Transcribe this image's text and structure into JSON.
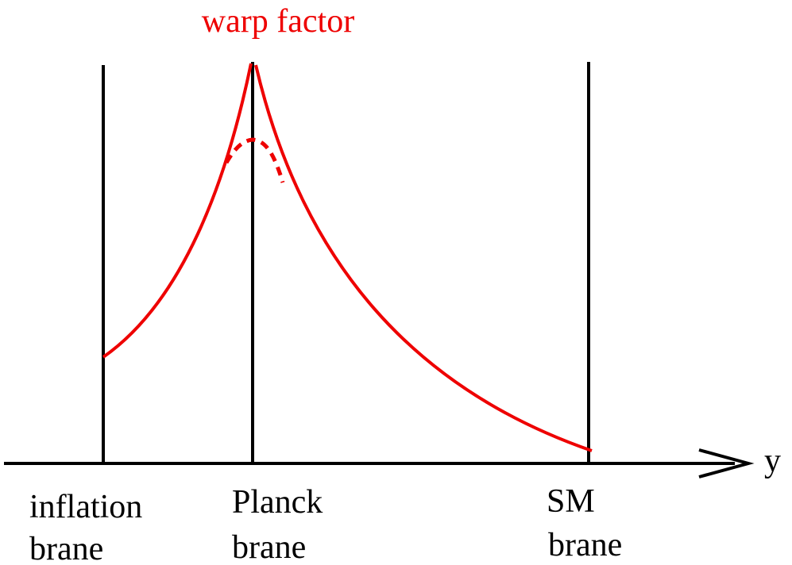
{
  "title": "warp factor",
  "axis": {
    "label": "y"
  },
  "branes": [
    {
      "id": "inflation",
      "line1": "inflation",
      "line2": "brane"
    },
    {
      "id": "planck",
      "line1": "Planck",
      "line2": "brane"
    },
    {
      "id": "sm",
      "line1": "SM",
      "line2": "brane"
    }
  ],
  "colors": {
    "curve": "#ee0000",
    "lines": "#000000",
    "title": "#ee0000"
  }
}
